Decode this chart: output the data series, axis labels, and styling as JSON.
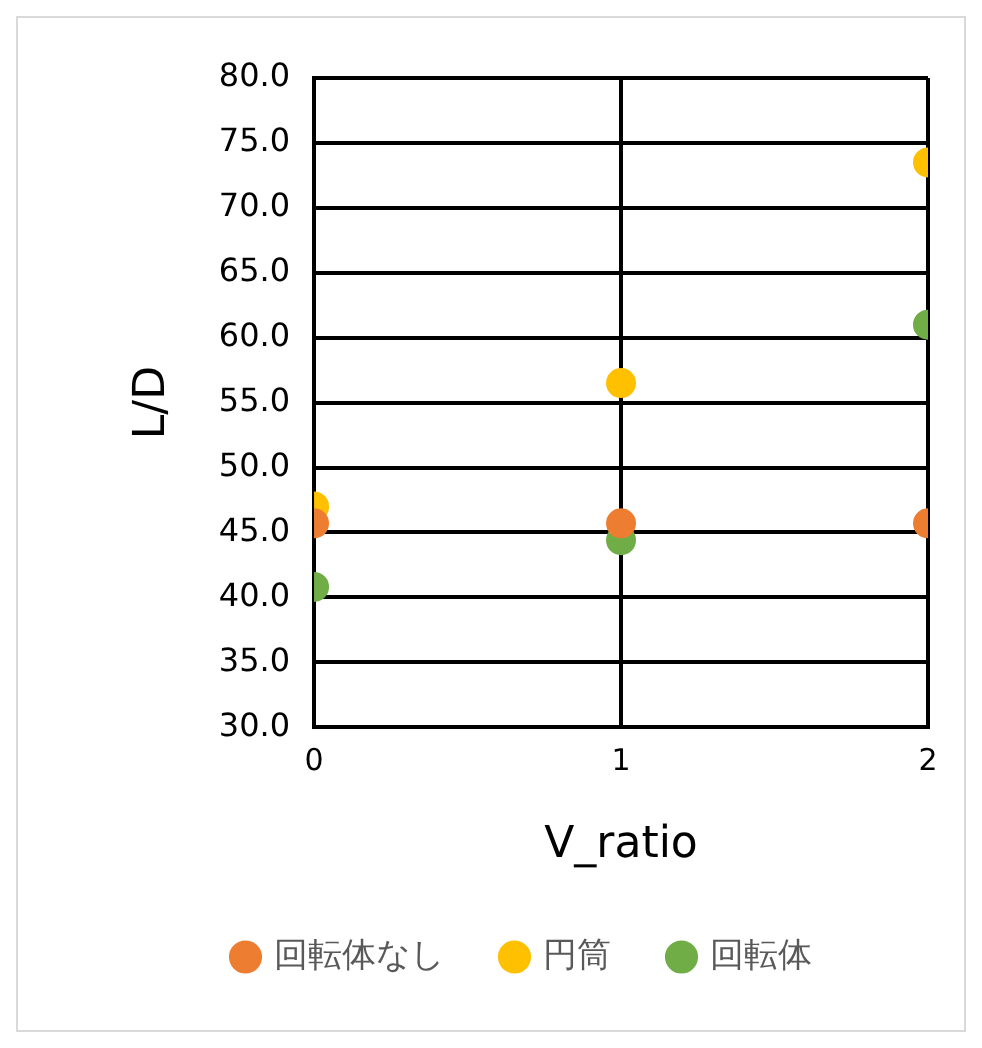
{
  "chart_data": {
    "type": "scatter",
    "xlabel": "V_ratio",
    "ylabel": "L/D",
    "x": [
      0,
      1,
      2
    ],
    "series": [
      {
        "name": "回転体なし",
        "color": "#ed7d31",
        "values": [
          45.7,
          45.7,
          45.7
        ]
      },
      {
        "name": "円筒",
        "color": "#ffc000",
        "values": [
          47.0,
          56.5,
          73.5
        ]
      },
      {
        "name": "回転体",
        "color": "#70ad47",
        "values": [
          40.8,
          44.4,
          61.0
        ]
      }
    ],
    "xlim": [
      0,
      2
    ],
    "xticks": [
      0,
      1,
      2
    ],
    "ylim": [
      30,
      80
    ],
    "yticks": [
      {
        "value": 30,
        "label": "30.0"
      },
      {
        "value": 35,
        "label": "35.0"
      },
      {
        "value": 40,
        "label": "40.0"
      },
      {
        "value": 45,
        "label": "45.0"
      },
      {
        "value": 50,
        "label": "50.0"
      },
      {
        "value": 55,
        "label": "55.0"
      },
      {
        "value": 60,
        "label": "60.0"
      },
      {
        "value": 65,
        "label": "65.0"
      },
      {
        "value": 70,
        "label": "70.0"
      },
      {
        "value": 75,
        "label": "75.0"
      },
      {
        "value": 80,
        "label": "80.0"
      }
    ],
    "grid": true,
    "legend": "bottom",
    "marker": "circle"
  }
}
